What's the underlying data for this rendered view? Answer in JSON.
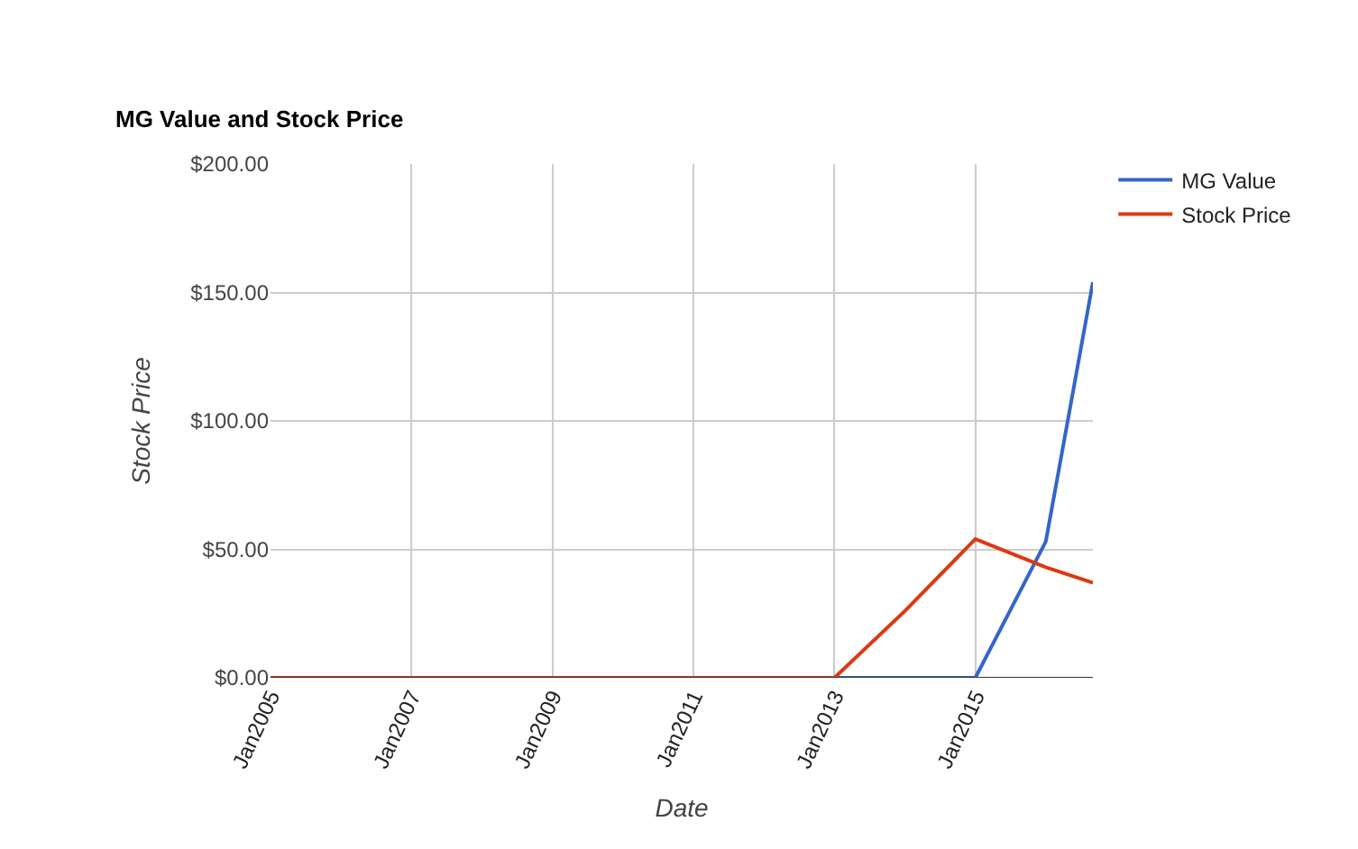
{
  "chart_data": {
    "type": "line",
    "title": "MG Value and Stock Price",
    "xlabel": "Date",
    "ylabel": "Stock Price",
    "x": [
      "2005-01",
      "2006-01",
      "2007-01",
      "2008-01",
      "2009-01",
      "2010-01",
      "2011-01",
      "2012-01",
      "2013-01",
      "2014-01",
      "2015-01",
      "2016-01",
      "2016-09"
    ],
    "series": [
      {
        "name": "MG Value",
        "color": "#3366cc",
        "values": [
          null,
          null,
          null,
          null,
          null,
          null,
          null,
          null,
          0,
          0,
          0,
          53,
          154
        ]
      },
      {
        "name": "Stock Price",
        "color": "#dc3912",
        "values": [
          0,
          0,
          0,
          0,
          0,
          0,
          0,
          0,
          0,
          26,
          54,
          43,
          37
        ]
      }
    ],
    "xlim": [
      "2005-01",
      "2016-09"
    ],
    "xticks": [
      {
        "value": "2005-01",
        "label": "Jan2005"
      },
      {
        "value": "2007-01",
        "label": "Jan2007"
      },
      {
        "value": "2009-01",
        "label": "Jan2009"
      },
      {
        "value": "2011-01",
        "label": "Jan2011"
      },
      {
        "value": "2013-01",
        "label": "Jan2013"
      },
      {
        "value": "2015-01",
        "label": "Jan2015"
      }
    ],
    "ylim": [
      0,
      200
    ],
    "yticks": [
      {
        "value": 0,
        "label": "$0.00"
      },
      {
        "value": 50,
        "label": "$50.00"
      },
      {
        "value": 100,
        "label": "$100.00"
      },
      {
        "value": 150,
        "label": "$150.00"
      },
      {
        "value": 200,
        "label": "$200.00"
      }
    ],
    "grid": true,
    "legend": "top right",
    "marker": "none",
    "line_style": "solid"
  }
}
